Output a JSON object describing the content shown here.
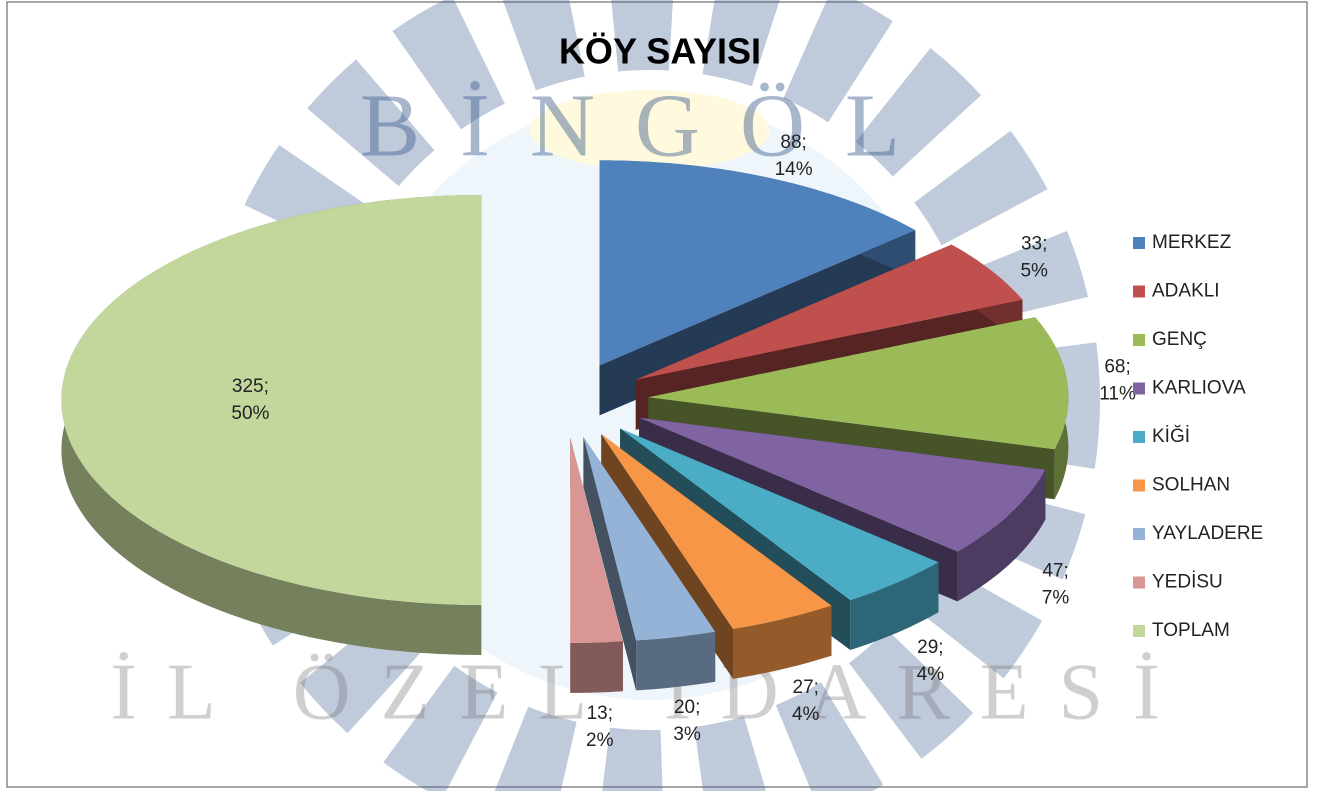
{
  "chart_data": {
    "type": "pie3d",
    "title": "KÖY SAYISI",
    "watermark_top": "BİNGÖL",
    "watermark_bottom": "İL ÖZEL İDARESİ",
    "categories": [
      "MERKEZ",
      "ADAKLI",
      "GENÇ",
      "KARLIOVA",
      "KİĞİ",
      "SOLHAN",
      "YAYLADERE",
      "YEDİSU",
      "TOPLAM"
    ],
    "values": [
      88,
      33,
      68,
      47,
      29,
      27,
      20,
      13,
      325
    ],
    "value_labels": [
      "88; 14%",
      "33; 5%",
      "68; 11%",
      "47; 7%",
      "29; 4%",
      "27; 4%",
      "20; 3%",
      "13; 2%",
      "325; 50%"
    ],
    "colors": [
      "#4f81bd",
      "#c0504d",
      "#9bbb59",
      "#8064a2",
      "#4bacc6",
      "#f79646",
      "#95b3d7",
      "#d99694",
      "#c3d69b"
    ],
    "legend": "right"
  }
}
